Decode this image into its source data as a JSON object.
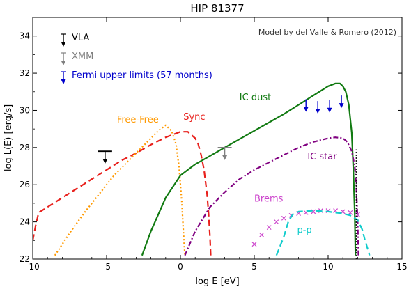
{
  "chart_data": {
    "type": "line",
    "title": "HIP 81377",
    "subtitle": "Model by del Valle & Romero (2012)",
    "xlabel": "log E [eV]",
    "ylabel": "log L(E) [erg/s]",
    "xlim": [
      -10,
      15
    ],
    "ylim": [
      22,
      35
    ],
    "xticks": [
      -10,
      -5,
      0,
      5,
      10,
      15
    ],
    "yticks": [
      22,
      24,
      26,
      28,
      30,
      32,
      34
    ],
    "grid": false,
    "legend": {
      "position": "top-left",
      "entries": [
        {
          "label": "VLA",
          "color": "#000000"
        },
        {
          "label": "XMM",
          "color": "#808080"
        },
        {
          "label": "Fermi upper limits (57 months)",
          "color": "#0000cc"
        }
      ]
    },
    "series": [
      {
        "name": "Sync",
        "color": "#e8201c",
        "style": "dashed",
        "x": [
          -10,
          -9.8,
          -9.6,
          -9,
          -8,
          -7,
          -6,
          -5,
          -4,
          -3,
          -2,
          -1,
          -0.5,
          0,
          0.5,
          1,
          1.2,
          1.4,
          1.6,
          1.8,
          1.9,
          2,
          2.05
        ],
        "y": [
          23,
          23.8,
          24.5,
          24.8,
          25.3,
          25.8,
          26.3,
          26.8,
          27.3,
          27.7,
          28.15,
          28.55,
          28.7,
          28.85,
          28.85,
          28.5,
          28.2,
          27.6,
          26.8,
          25.5,
          24.5,
          23.2,
          22.2
        ]
      },
      {
        "name": "Free-Free",
        "color": "#ff9900",
        "style": "dotted",
        "x": [
          -8.5,
          -7.5,
          -6.5,
          -5.5,
          -4.5,
          -3.5,
          -2.5,
          -1.5,
          -1,
          -0.6,
          -0.3,
          -0.1,
          0,
          0.1,
          0.2,
          0.3
        ],
        "y": [
          22.2,
          23.4,
          24.5,
          25.5,
          26.5,
          27.3,
          28.1,
          28.9,
          29.2,
          28.9,
          28.2,
          27.0,
          26.0,
          25.0,
          23.5,
          22.2
        ]
      },
      {
        "name": "IC dust",
        "color": "#117a11",
        "style": "solid",
        "x": [
          -2.6,
          -2,
          -1,
          0,
          1,
          2,
          3,
          4,
          5,
          6,
          7,
          8,
          9,
          10,
          10.5,
          10.8,
          11,
          11.2,
          11.4,
          11.6,
          11.7,
          11.8,
          11.85
        ],
        "y": [
          22.2,
          23.5,
          25.3,
          26.5,
          27.1,
          27.55,
          28.0,
          28.45,
          28.9,
          29.35,
          29.8,
          30.3,
          30.8,
          31.3,
          31.45,
          31.45,
          31.3,
          31.0,
          30.3,
          28.8,
          27.0,
          24.5,
          22.2
        ]
      },
      {
        "name": "IC star",
        "color": "#800080",
        "style": "dashdot",
        "x": [
          0.3,
          1,
          2,
          3,
          4,
          5,
          6,
          7,
          8,
          9,
          10,
          10.5,
          11,
          11.3,
          11.6,
          11.8,
          11.9,
          12,
          12.05
        ],
        "y": [
          22.2,
          23.5,
          24.8,
          25.6,
          26.3,
          26.8,
          27.2,
          27.6,
          28.0,
          28.3,
          28.5,
          28.55,
          28.5,
          28.3,
          27.8,
          27.0,
          26.0,
          24.0,
          22.2
        ]
      },
      {
        "name": "Brems",
        "color": "#cc44cc",
        "style": "markers-x",
        "x": [
          5,
          5.5,
          6,
          6.5,
          7,
          7.5,
          8,
          8.5,
          9,
          9.5,
          10,
          10.5,
          11,
          11.5,
          12
        ],
        "y": [
          22.8,
          23.3,
          23.7,
          24.0,
          24.2,
          24.35,
          24.45,
          24.5,
          24.55,
          24.6,
          24.6,
          24.6,
          24.55,
          24.5,
          24.4
        ]
      },
      {
        "name": "p-p",
        "color": "#11cccc",
        "style": "dashed",
        "x": [
          6.5,
          7,
          7.3,
          7.6,
          8,
          9,
          10,
          11,
          11.5,
          12,
          12.3,
          12.5,
          12.7,
          12.8
        ],
        "y": [
          22.2,
          23.2,
          24.0,
          24.4,
          24.55,
          24.6,
          24.55,
          24.45,
          24.35,
          24.1,
          23.6,
          23.0,
          22.5,
          22.2
        ]
      }
    ],
    "upper_limits": [
      {
        "instrument": "VLA",
        "color": "#000000",
        "x": -5.1,
        "y": 27.8
      },
      {
        "instrument": "XMM",
        "color": "#808080",
        "x": 3.0,
        "y": 28.0
      },
      {
        "instrument": "Fermi",
        "color": "#0000cc",
        "x": 8.5,
        "y": 30.6
      },
      {
        "instrument": "Fermi",
        "color": "#0000cc",
        "x": 9.3,
        "y": 30.5
      },
      {
        "instrument": "Fermi",
        "color": "#0000cc",
        "x": 10.1,
        "y": 30.55
      },
      {
        "instrument": "Fermi",
        "color": "#0000cc",
        "x": 10.9,
        "y": 30.8
      }
    ],
    "vertical_lines": [
      {
        "x": 11.9,
        "color": "#000000",
        "style": "dotted"
      }
    ],
    "annotations": [
      {
        "text": "Free-Free",
        "x": -4.3,
        "y": 29.35,
        "color": "#ff9900"
      },
      {
        "text": "Sync",
        "x": 0.2,
        "y": 29.5,
        "color": "#e8201c"
      },
      {
        "text": "IC dust",
        "x": 4.0,
        "y": 30.55,
        "color": "#117a11"
      },
      {
        "text": "IC star",
        "x": 8.6,
        "y": 27.35,
        "color": "#800080"
      },
      {
        "text": "Brems",
        "x": 5.0,
        "y": 25.1,
        "color": "#cc44cc"
      },
      {
        "text": "p-p",
        "x": 7.9,
        "y": 23.4,
        "color": "#11cccc"
      }
    ]
  }
}
